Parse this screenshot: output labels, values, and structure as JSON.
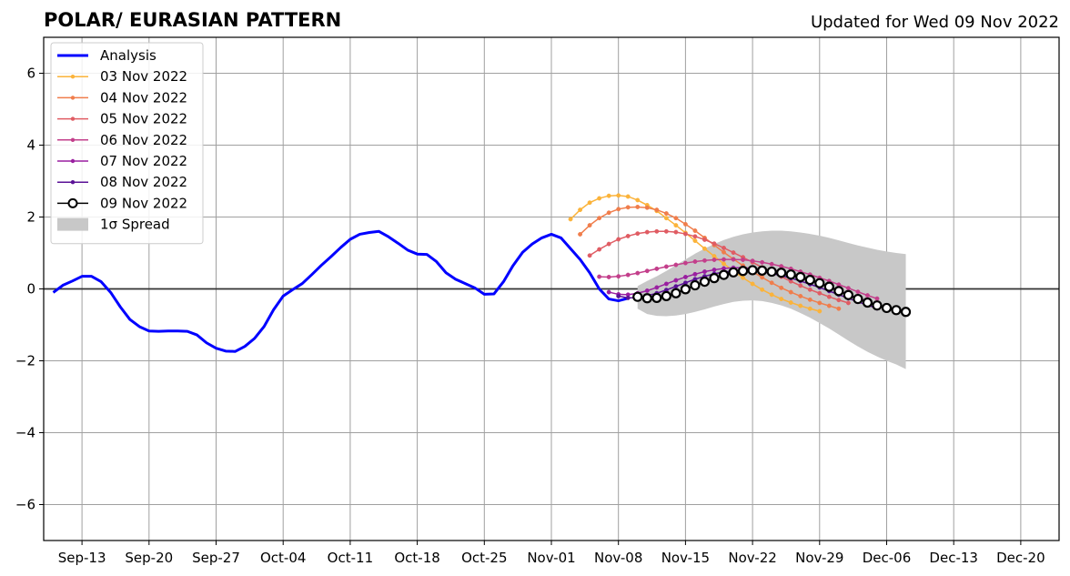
{
  "chart_data": {
    "type": "line",
    "title": "POLAR/ EURASIAN  PATTERN",
    "subtitle": "Updated for Wed 09 Nov 2022",
    "xlabel": "",
    "ylabel": "",
    "ylim": [
      -7,
      7
    ],
    "xlim": [
      "2022-09-09",
      "2022-12-24"
    ],
    "grid": true,
    "legend_position": "top-left",
    "zero_line": true,
    "yticks": [
      -6,
      -4,
      -2,
      0,
      2,
      4,
      6
    ],
    "ytick_labels": [
      "−6",
      "−4",
      "−2",
      "0",
      "2",
      "4",
      "6"
    ],
    "xticks": [
      {
        "date": "2022-09-13",
        "label": "Sep-13"
      },
      {
        "date": "2022-09-20",
        "label": "Sep-20"
      },
      {
        "date": "2022-09-27",
        "label": "Sep-27"
      },
      {
        "date": "2022-10-04",
        "label": "Oct-04"
      },
      {
        "date": "2022-10-11",
        "label": "Oct-11"
      },
      {
        "date": "2022-10-18",
        "label": "Oct-18"
      },
      {
        "date": "2022-10-25",
        "label": "Oct-25"
      },
      {
        "date": "2022-11-01",
        "label": "Nov-01"
      },
      {
        "date": "2022-11-08",
        "label": "Nov-08"
      },
      {
        "date": "2022-11-15",
        "label": "Nov-15"
      },
      {
        "date": "2022-11-22",
        "label": "Nov-22"
      },
      {
        "date": "2022-11-29",
        "label": "Nov-29"
      },
      {
        "date": "2022-12-06",
        "label": "Dec-06"
      },
      {
        "date": "2022-12-13",
        "label": "Dec-13"
      },
      {
        "date": "2022-12-20",
        "label": "Dec-20"
      }
    ],
    "analysis": {
      "name": "Analysis",
      "color": "#0000ff",
      "start": "2022-09-10",
      "values": [
        -0.1,
        0.1,
        0.22,
        0.35,
        0.35,
        0.2,
        -0.1,
        -0.5,
        -0.85,
        -1.05,
        -1.17,
        -1.18,
        -1.17,
        -1.17,
        -1.18,
        -1.28,
        -1.5,
        -1.65,
        -1.73,
        -1.74,
        -1.6,
        -1.38,
        -1.05,
        -0.58,
        -0.2,
        -0.02,
        0.15,
        0.4,
        0.66,
        0.9,
        1.15,
        1.38,
        1.52,
        1.57,
        1.6,
        1.45,
        1.27,
        1.08,
        0.97,
        0.96,
        0.76,
        0.45,
        0.27,
        0.15,
        0.03,
        -0.15,
        -0.14,
        0.2,
        0.65,
        1.02,
        1.25,
        1.42,
        1.52,
        1.42,
        1.12,
        0.82,
        0.45,
        0.0,
        -0.28,
        -0.33,
        -0.26
      ]
    },
    "forecasts": [
      {
        "name": "03 Nov 2022",
        "color": "#fbb33a",
        "start": "2022-11-03",
        "values": [
          1.94,
          2.2,
          2.4,
          2.52,
          2.59,
          2.6,
          2.57,
          2.47,
          2.33,
          2.17,
          1.97,
          1.77,
          1.56,
          1.34,
          1.12,
          0.91,
          0.7,
          0.5,
          0.31,
          0.14,
          -0.02,
          -0.16,
          -0.28,
          -0.38,
          -0.47,
          -0.55,
          -0.62
        ]
      },
      {
        "name": "04 Nov 2022",
        "color": "#f07d4b",
        "start": "2022-11-04",
        "values": [
          1.52,
          1.77,
          1.97,
          2.12,
          2.22,
          2.27,
          2.28,
          2.26,
          2.2,
          2.1,
          1.97,
          1.8,
          1.62,
          1.42,
          1.22,
          1.02,
          0.83,
          0.65,
          0.48,
          0.32,
          0.17,
          0.03,
          -0.09,
          -0.2,
          -0.3,
          -0.39,
          -0.47,
          -0.55
        ]
      },
      {
        "name": "05 Nov 2022",
        "color": "#e05c63",
        "start": "2022-11-05",
        "values": [
          0.93,
          1.1,
          1.25,
          1.38,
          1.47,
          1.54,
          1.58,
          1.6,
          1.6,
          1.58,
          1.53,
          1.46,
          1.37,
          1.26,
          1.14,
          1.01,
          0.88,
          0.74,
          0.6,
          0.47,
          0.34,
          0.21,
          0.09,
          -0.02,
          -0.12,
          -0.22,
          -0.31,
          -0.39
        ]
      },
      {
        "name": "06 Nov 2022",
        "color": "#c33f8b",
        "start": "2022-11-06",
        "values": [
          0.34,
          0.33,
          0.35,
          0.39,
          0.44,
          0.5,
          0.56,
          0.62,
          0.67,
          0.72,
          0.76,
          0.79,
          0.81,
          0.82,
          0.82,
          0.81,
          0.78,
          0.74,
          0.69,
          0.63,
          0.56,
          0.48,
          0.4,
          0.31,
          0.22,
          0.12,
          0.02,
          -0.08,
          -0.18,
          -0.27
        ]
      },
      {
        "name": "07 Nov 2022",
        "color": "#9a1fa0",
        "start": "2022-11-07",
        "values": [
          -0.09,
          -0.15,
          -0.16,
          -0.12,
          -0.05,
          0.04,
          0.14,
          0.24,
          0.33,
          0.41,
          0.48,
          0.53,
          0.57,
          0.59,
          0.59,
          0.57,
          0.54,
          0.5,
          0.45,
          0.38,
          0.31,
          0.23,
          0.14,
          0.05,
          -0.05,
          -0.15,
          -0.25,
          -0.35
        ]
      },
      {
        "name": "08 Nov 2022",
        "color": "#5a1196",
        "start": "2022-11-08",
        "values": [
          -0.2,
          -0.25,
          -0.24,
          -0.19,
          -0.12,
          -0.03,
          0.07,
          0.17,
          0.27,
          0.35,
          0.42,
          0.47,
          0.5,
          0.51,
          0.5,
          0.47,
          0.43,
          0.37,
          0.3,
          0.22,
          0.13,
          0.04,
          -0.06,
          -0.16,
          -0.26,
          -0.36,
          -0.45,
          -0.54
        ]
      },
      {
        "name": "09 Nov 2022",
        "color": "#000000",
        "marker": "open-circle",
        "start": "2022-11-10",
        "values": [
          -0.22,
          -0.26,
          -0.25,
          -0.2,
          -0.12,
          -0.01,
          0.1,
          0.2,
          0.3,
          0.39,
          0.46,
          0.5,
          0.52,
          0.51,
          0.48,
          0.45,
          0.4,
          0.33,
          0.25,
          0.16,
          0.06,
          -0.06,
          -0.17,
          -0.28,
          -0.38,
          -0.46,
          -0.53,
          -0.59,
          -0.64
        ]
      }
    ],
    "spread": {
      "name": "1σ Spread",
      "color": "#c8c8c8",
      "start": "2022-11-10",
      "upper": [
        0.08,
        0.22,
        0.35,
        0.5,
        0.66,
        0.82,
        0.98,
        1.12,
        1.25,
        1.36,
        1.45,
        1.52,
        1.57,
        1.6,
        1.62,
        1.62,
        1.6,
        1.57,
        1.53,
        1.48,
        1.42,
        1.35,
        1.28,
        1.21,
        1.15,
        1.09,
        1.04,
        1.0,
        0.97
      ],
      "lower": [
        -0.55,
        -0.7,
        -0.75,
        -0.76,
        -0.74,
        -0.7,
        -0.64,
        -0.57,
        -0.49,
        -0.42,
        -0.36,
        -0.33,
        -0.32,
        -0.34,
        -0.39,
        -0.46,
        -0.55,
        -0.67,
        -0.8,
        -0.95,
        -1.1,
        -1.27,
        -1.44,
        -1.6,
        -1.75,
        -1.88,
        -2.0,
        -2.1,
        -2.23
      ]
    }
  }
}
